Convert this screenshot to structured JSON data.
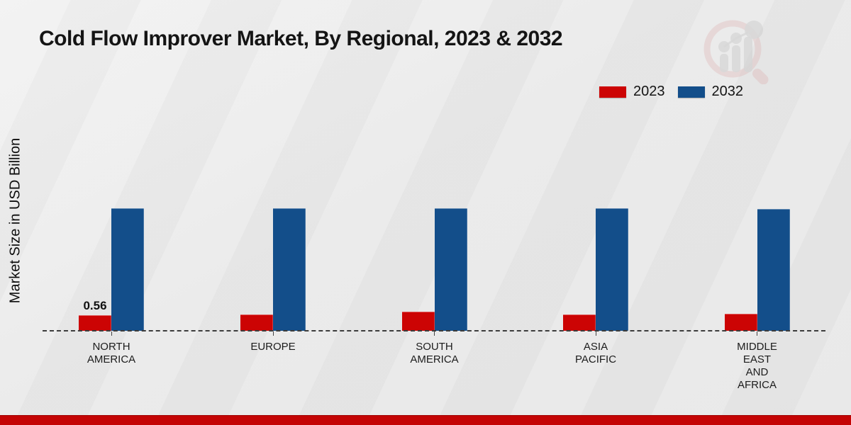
{
  "title": "Cold Flow Improver Market, By Regional, 2023 & 2032",
  "ylabel": "Market Size in USD Billion",
  "legend": {
    "items": [
      {
        "label": "2023",
        "color": "#cc0404"
      },
      {
        "label": "2032",
        "color": "#134e8a"
      }
    ]
  },
  "colors": {
    "bar_2023": "#cc0404",
    "bar_2032": "#134e8a",
    "baseline": "#3c3c3c",
    "footer_strip": "#c40404",
    "background": "#e9e9e9",
    "watermark_ring": "#d9a7a7",
    "watermark_bars": "#c9c9c9"
  },
  "chart_data": {
    "type": "bar",
    "categories": [
      "NORTH AMERICA",
      "EUROPE",
      "SOUTH AMERICA",
      "ASIA PACIFIC",
      "MIDDLE EAST AND AFRICA"
    ],
    "category_lines": [
      [
        "NORTH",
        "AMERICA"
      ],
      [
        "EUROPE"
      ],
      [
        "SOUTH",
        "AMERICA"
      ],
      [
        "ASIA",
        "PACIFIC"
      ],
      [
        "MIDDLE",
        "EAST",
        "AND",
        "AFRICA"
      ]
    ],
    "series": [
      {
        "name": "2023",
        "color": "#cc0404",
        "values": [
          0.56,
          0.6,
          0.7,
          0.6,
          0.62
        ]
      },
      {
        "name": "2032",
        "color": "#134e8a",
        "values": [
          4.47,
          4.47,
          4.47,
          4.47,
          4.45
        ]
      }
    ],
    "data_labels": [
      {
        "series_index": 0,
        "category_index": 0,
        "text": "0.56"
      }
    ],
    "title": "Cold Flow Improver Market, By Regional, 2023 & 2032",
    "xlabel": "",
    "ylabel": "Market Size in USD Billion",
    "ylim": [
      0,
      5.2
    ],
    "grid": false,
    "baseline_style": "dashed",
    "legend_position": "top-right"
  }
}
